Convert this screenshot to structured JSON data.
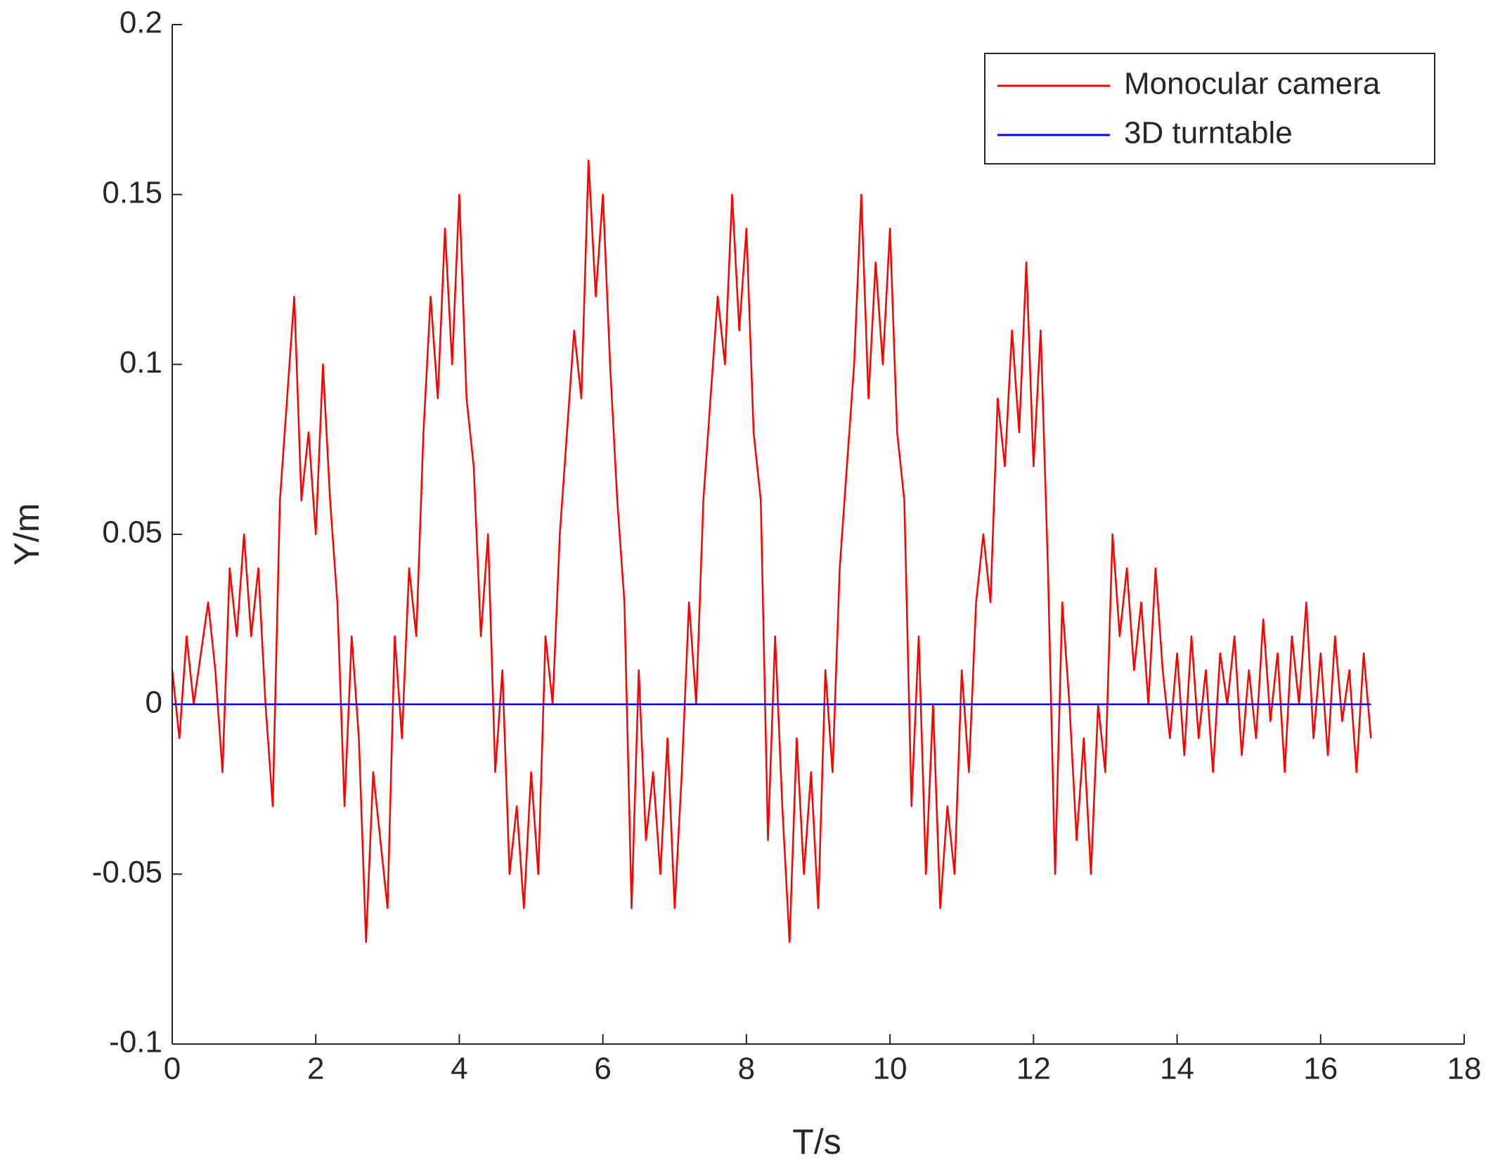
{
  "chart_data": {
    "type": "line",
    "xlabel": "T/s",
    "ylabel": "Y/m",
    "x": [
      0.0,
      0.1,
      0.2,
      0.3,
      0.4,
      0.5,
      0.6,
      0.7,
      0.8,
      0.9,
      1.0,
      1.1,
      1.2,
      1.3,
      1.4,
      1.5,
      1.6,
      1.7,
      1.8,
      1.9,
      2.0,
      2.1,
      2.2,
      2.3,
      2.4,
      2.5,
      2.6,
      2.7,
      2.8,
      2.9,
      3.0,
      3.1,
      3.2,
      3.3,
      3.4,
      3.5,
      3.6,
      3.7,
      3.8,
      3.9,
      4.0,
      4.1,
      4.2,
      4.3,
      4.4,
      4.5,
      4.6,
      4.7,
      4.8,
      4.9,
      5.0,
      5.1,
      5.2,
      5.3,
      5.4,
      5.5,
      5.6,
      5.7,
      5.8,
      5.9,
      6.0,
      6.1,
      6.2,
      6.3,
      6.4,
      6.5,
      6.6,
      6.7,
      6.8,
      6.9,
      7.0,
      7.1,
      7.2,
      7.3,
      7.4,
      7.5,
      7.6,
      7.7,
      7.8,
      7.9,
      8.0,
      8.1,
      8.2,
      8.3,
      8.4,
      8.5,
      8.6,
      8.7,
      8.8,
      8.9,
      9.0,
      9.1,
      9.2,
      9.3,
      9.4,
      9.5,
      9.6,
      9.7,
      9.8,
      9.9,
      10.0,
      10.1,
      10.2,
      10.3,
      10.4,
      10.5,
      10.6,
      10.7,
      10.8,
      10.9,
      11.0,
      11.1,
      11.2,
      11.3,
      11.4,
      11.5,
      11.6,
      11.7,
      11.8,
      11.9,
      12.0,
      12.1,
      12.2,
      12.3,
      12.4,
      12.5,
      12.6,
      12.7,
      12.8,
      12.9,
      13.0,
      13.1,
      13.2,
      13.3,
      13.4,
      13.5,
      13.6,
      13.7,
      13.8,
      13.9,
      14.0,
      14.1,
      14.2,
      14.3,
      14.4,
      14.5,
      14.6,
      14.7,
      14.8,
      14.9,
      15.0,
      15.1,
      15.2,
      15.3,
      15.4,
      15.5,
      15.6,
      15.7,
      15.8,
      15.9,
      16.0,
      16.1,
      16.2,
      16.3,
      16.4,
      16.5,
      16.6,
      16.7
    ],
    "series": [
      {
        "name": "Monocular camera",
        "color": "#ff0000",
        "values": [
          0.01,
          -0.01,
          0.02,
          0.0,
          0.015,
          0.03,
          0.01,
          -0.02,
          0.04,
          0.02,
          0.05,
          0.02,
          0.04,
          0.0,
          -0.03,
          0.06,
          0.09,
          0.12,
          0.06,
          0.08,
          0.05,
          0.1,
          0.06,
          0.03,
          -0.03,
          0.02,
          -0.01,
          -0.07,
          -0.02,
          -0.04,
          -0.06,
          0.02,
          -0.01,
          0.04,
          0.02,
          0.08,
          0.12,
          0.09,
          0.14,
          0.1,
          0.15,
          0.09,
          0.07,
          0.02,
          0.05,
          -0.02,
          0.01,
          -0.05,
          -0.03,
          -0.06,
          -0.02,
          -0.05,
          0.02,
          0.0,
          0.05,
          0.08,
          0.11,
          0.09,
          0.16,
          0.12,
          0.15,
          0.1,
          0.06,
          0.03,
          -0.06,
          0.01,
          -0.04,
          -0.02,
          -0.05,
          -0.01,
          -0.06,
          -0.02,
          0.03,
          0.0,
          0.06,
          0.09,
          0.12,
          0.1,
          0.15,
          0.11,
          0.14,
          0.08,
          0.06,
          -0.04,
          0.02,
          -0.03,
          -0.07,
          -0.01,
          -0.05,
          -0.02,
          -0.06,
          0.01,
          -0.02,
          0.04,
          0.07,
          0.1,
          0.15,
          0.09,
          0.13,
          0.1,
          0.14,
          0.08,
          0.06,
          -0.03,
          0.02,
          -0.05,
          0.0,
          -0.06,
          -0.03,
          -0.05,
          0.01,
          -0.02,
          0.03,
          0.05,
          0.03,
          0.09,
          0.07,
          0.11,
          0.08,
          0.13,
          0.07,
          0.11,
          0.04,
          -0.05,
          0.03,
          0.0,
          -0.04,
          -0.01,
          -0.05,
          0.0,
          -0.02,
          0.05,
          0.02,
          0.04,
          0.01,
          0.03,
          0.0,
          0.04,
          0.01,
          -0.01,
          0.015,
          -0.015,
          0.02,
          -0.01,
          0.01,
          -0.02,
          0.015,
          0.0,
          0.02,
          -0.015,
          0.01,
          -0.01,
          0.025,
          -0.005,
          0.015,
          -0.02,
          0.02,
          0.0,
          0.03,
          -0.01,
          0.015,
          -0.015,
          0.02,
          -0.005,
          0.01,
          -0.02,
          0.015,
          -0.01
        ]
      },
      {
        "name": "3D turntable",
        "color": "#0000ff",
        "x": [
          0,
          16.7
        ],
        "values": [
          0,
          0
        ]
      }
    ],
    "xlim": [
      0,
      18
    ],
    "xticks": [
      0,
      2,
      4,
      6,
      8,
      10,
      12,
      14,
      16,
      18
    ],
    "ylim": [
      -0.1,
      0.2
    ],
    "yticks": [
      -0.1,
      -0.05,
      0,
      0.05,
      0.1,
      0.15,
      0.2
    ],
    "legend": "upper right"
  }
}
